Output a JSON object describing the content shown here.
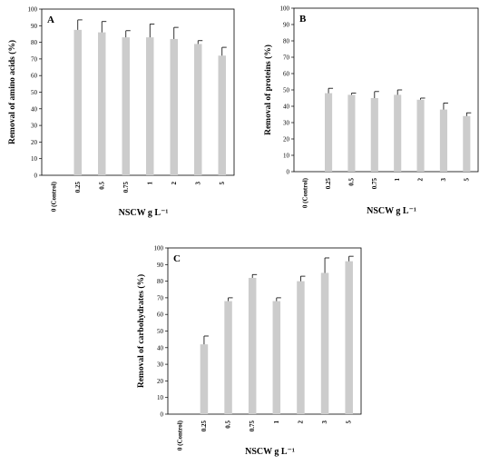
{
  "chart_data": [
    {
      "type": "bar",
      "panel_label": "A",
      "categories": [
        "0 (Control)",
        "0.25",
        "0.5",
        "0.75",
        "1",
        "2",
        "3",
        "5"
      ],
      "values": [
        0,
        87.5,
        86,
        83,
        83,
        82,
        79,
        72
      ],
      "errors": [
        0,
        6,
        6.5,
        4,
        8,
        7,
        2,
        5
      ],
      "xlabel": "NSCW g L⁻¹",
      "ylabel": "Removal of amino acids (%)",
      "ylim": [
        0,
        100
      ],
      "yticks": [
        0,
        10,
        20,
        30,
        40,
        50,
        60,
        70,
        80,
        90,
        100
      ],
      "grid": false,
      "bar_color": "#cccccc"
    },
    {
      "type": "bar",
      "panel_label": "B",
      "categories": [
        "0 (Control)",
        "0.25",
        "0.5",
        "0.75",
        "1",
        "2",
        "3",
        "5"
      ],
      "values": [
        0,
        48,
        47,
        45,
        47,
        44,
        38,
        34
      ],
      "errors": [
        0,
        3,
        1,
        4,
        3,
        1,
        4,
        2
      ],
      "xlabel": "NSCW g L⁻¹",
      "ylabel": "Removal of proteins (%)",
      "ylim": [
        0,
        100
      ],
      "yticks": [
        0,
        10,
        20,
        30,
        40,
        50,
        60,
        70,
        80,
        90,
        100
      ],
      "grid": false,
      "bar_color": "#cccccc"
    },
    {
      "type": "bar",
      "panel_label": "C",
      "categories": [
        "0 (Control)",
        "0.25",
        "0.5",
        "0.75",
        "1",
        "2",
        "3",
        "5"
      ],
      "values": [
        0,
        42,
        68,
        82,
        68,
        80,
        85,
        92
      ],
      "errors": [
        0,
        5,
        2,
        2,
        2,
        3,
        9,
        3
      ],
      "xlabel": "NSCW g L⁻¹",
      "ylabel": "Removal of carbohydrates (%)",
      "ylim": [
        0,
        100
      ],
      "yticks": [
        0,
        10,
        20,
        30,
        40,
        50,
        60,
        70,
        80,
        90,
        100
      ],
      "grid": false,
      "bar_color": "#cccccc"
    }
  ]
}
